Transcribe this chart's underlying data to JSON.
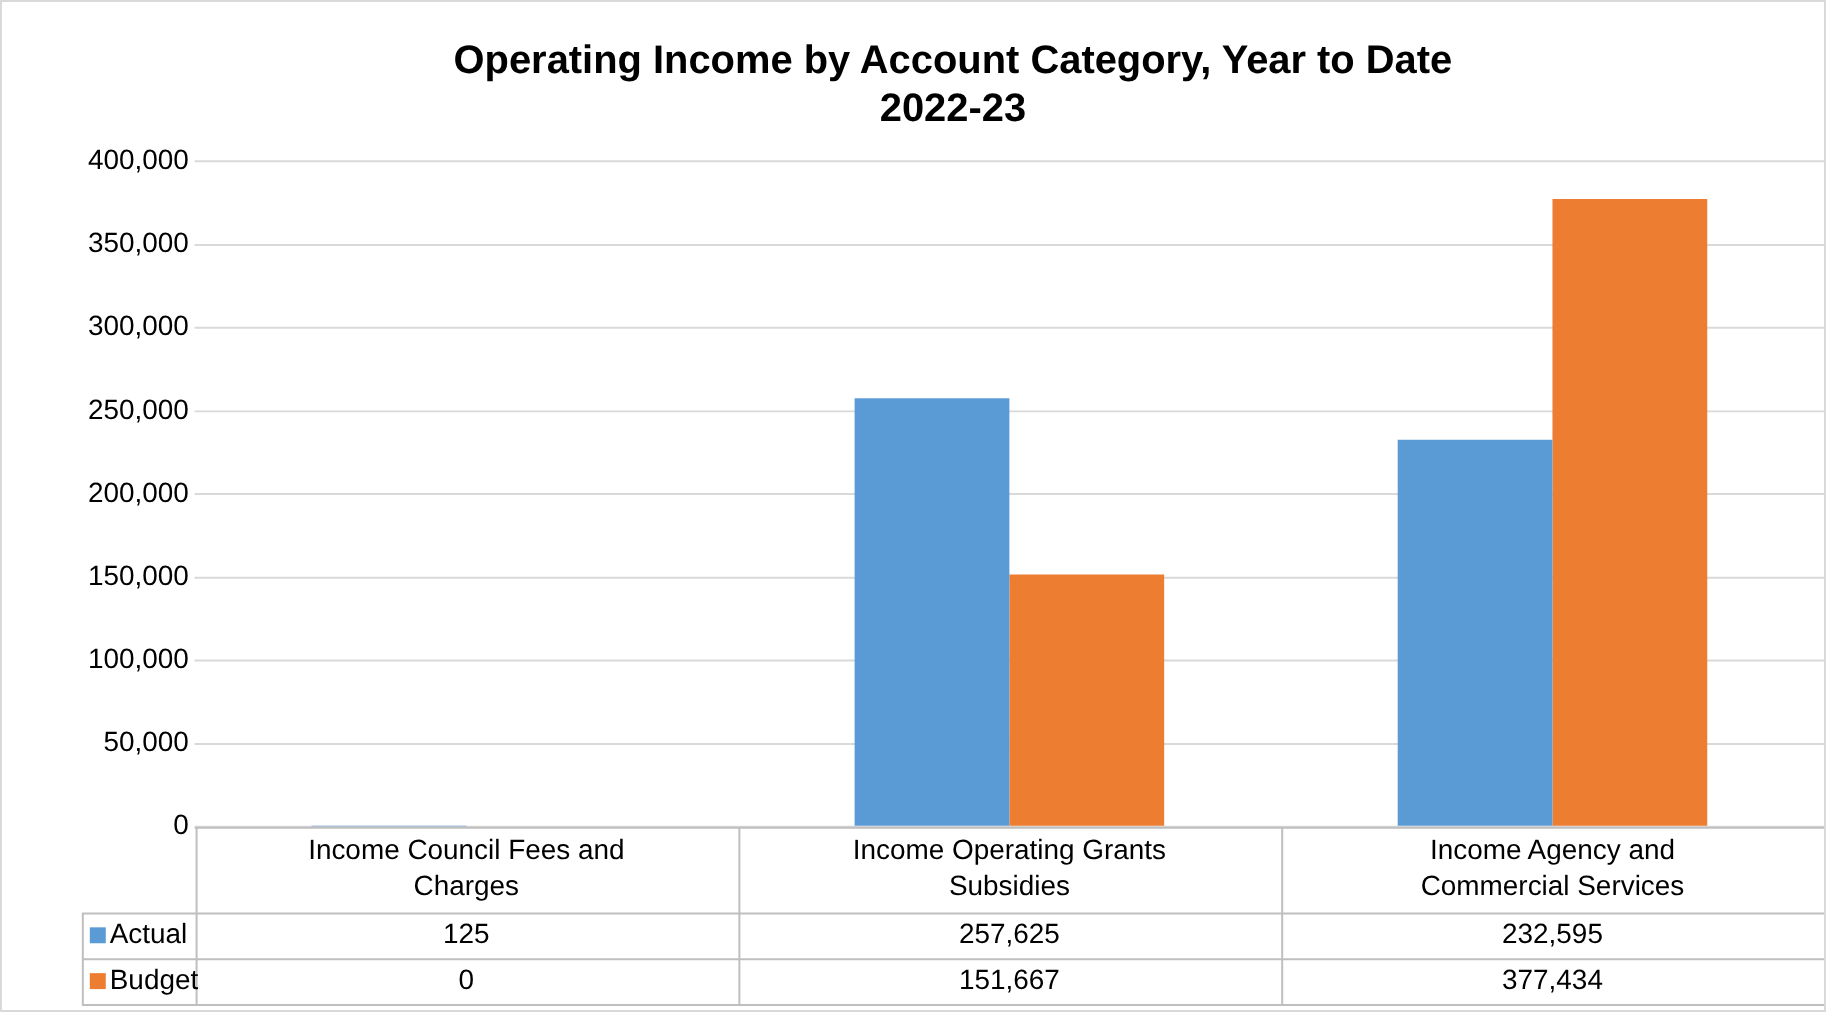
{
  "chart_data": {
    "type": "bar",
    "title": "Operating Income by Account Category, Year to Date 2022-23",
    "categories": [
      "Income Council Fees and Charges",
      "Income Operating Grants Subsidies",
      "Income Agency and Commercial Services"
    ],
    "series": [
      {
        "name": "Actual",
        "color": "#5b9bd5",
        "values": [
          125,
          257625,
          232595
        ],
        "value_labels": [
          "125",
          "257,625",
          "232,595"
        ]
      },
      {
        "name": "Budget",
        "color": "#ed7d31",
        "values": [
          0,
          151667,
          377434
        ],
        "value_labels": [
          "0",
          "151,667",
          "377,434"
        ]
      }
    ],
    "ylim": [
      0,
      400000
    ],
    "yticks": [
      {
        "value": 0,
        "label": "0"
      },
      {
        "value": 50000,
        "label": "50,000"
      },
      {
        "value": 100000,
        "label": "100,000"
      },
      {
        "value": 150000,
        "label": "150,000"
      },
      {
        "value": 200000,
        "label": "200,000"
      },
      {
        "value": 250000,
        "label": "250,000"
      },
      {
        "value": 300000,
        "label": "300,000"
      },
      {
        "value": 350000,
        "label": "350,000"
      },
      {
        "value": 400000,
        "label": "400,000"
      }
    ],
    "grid": "y",
    "legend": "bottom left"
  }
}
